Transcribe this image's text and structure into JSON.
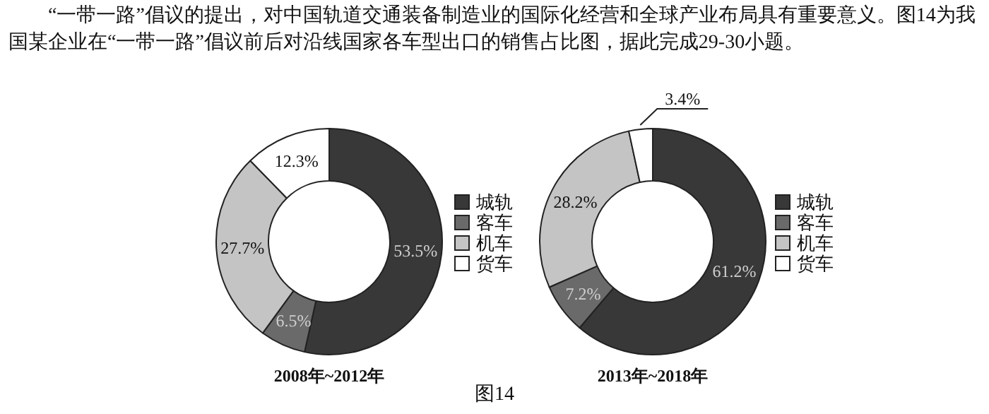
{
  "chart_data": [
    {
      "type": "other",
      "annotations": [
        "“一带一路”倡议的提出，对中国轨道交通装备制造业的国际化经营和全球产业布局具有重要意义。图14为我国某企业在“一带一路”倡议前后对沿线国家各车型出口的销售占比图，据此完成29-30小题。",
        "图14"
      ]
    },
    {
      "type": "donut",
      "xlabel": "2008年~2012年",
      "categories": [
        "城轨",
        "客车",
        "机车",
        "货车"
      ],
      "values": [
        53.5,
        6.5,
        27.7,
        12.3
      ],
      "colors": [
        "#383838",
        "#6a6a6a",
        "#c4c4c4",
        "#ffffff"
      ],
      "value_labels": [
        "53.5%",
        "6.5%",
        "27.7%",
        "12.3%"
      ],
      "legend": "right"
    },
    {
      "type": "donut",
      "xlabel": "2013年~2018年",
      "categories": [
        "城轨",
        "客车",
        "机车",
        "货车"
      ],
      "values": [
        61.2,
        7.2,
        28.2,
        3.4
      ],
      "colors": [
        "#383838",
        "#6a6a6a",
        "#c4c4c4",
        "#ffffff"
      ],
      "value_labels": [
        "61.2%",
        "7.2%",
        "28.2%",
        "3.4%"
      ],
      "legend": "right"
    }
  ]
}
